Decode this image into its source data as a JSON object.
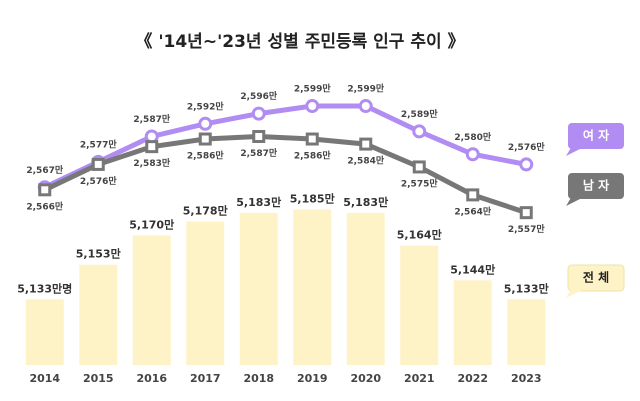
{
  "chart_data": {
    "type": "bar_line",
    "title": "《 '14년~'23년 성별 주민등록 인구 추이 》",
    "categories": [
      "2014",
      "2015",
      "2016",
      "2017",
      "2018",
      "2019",
      "2020",
      "2021",
      "2022",
      "2023"
    ],
    "ylim": [
      5095,
      5283
    ],
    "y2lim": [
      2497,
      2625
    ],
    "series": [
      {
        "name": "전 체",
        "type": "bar",
        "color": "#fdf3c6",
        "values": [
          5133,
          5153,
          5170,
          5178,
          5183,
          5185,
          5183,
          5164,
          5144,
          5133
        ],
        "value_labels": [
          "5,133만명",
          "5,153만",
          "5,170만",
          "5,178만",
          "5,183만",
          "5,185만",
          "5,183만",
          "5,164만",
          "5,144만",
          "5,133만"
        ]
      },
      {
        "name": "여 자",
        "type": "line",
        "axis": "y2",
        "color": "#b18cf2",
        "values": [
          2567,
          2577,
          2587,
          2592,
          2596,
          2599,
          2599,
          2589,
          2580,
          2576
        ],
        "value_labels": [
          "2,567만",
          "2,577만",
          "2,587만",
          "2,592만",
          "2,596만",
          "2,599만",
          "2,599만",
          "2,589만",
          "2,580만",
          "2,576만"
        ]
      },
      {
        "name": "남 자",
        "type": "line",
        "axis": "y2",
        "color": "#777777",
        "values": [
          2566,
          2576,
          2583,
          2586,
          2587,
          2586,
          2584,
          2575,
          2564,
          2557
        ],
        "value_labels": [
          "2,566만",
          "2,576만",
          "2,583만",
          "2,586만",
          "2,587만",
          "2,586만",
          "2,584만",
          "2,575만",
          "2,564만",
          "2,557만"
        ]
      }
    ]
  }
}
